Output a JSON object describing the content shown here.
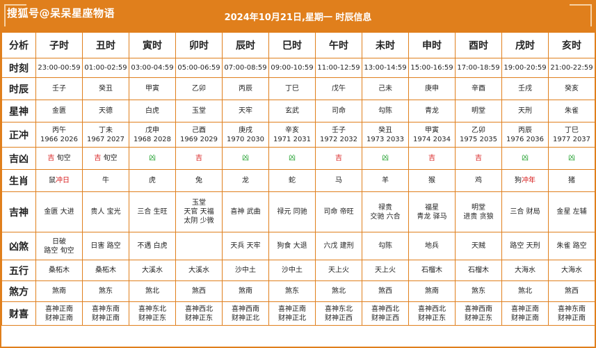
{
  "header": {
    "watermark": "搜狐号@呆呆星座物语",
    "title": "2024年10月21日,星期一 时辰信息"
  },
  "table": {
    "corner_label": "分析",
    "columns": [
      "子时",
      "丑时",
      "寅时",
      "卯时",
      "辰时",
      "巳时",
      "午时",
      "未时",
      "申时",
      "酉时",
      "戌时",
      "亥时"
    ],
    "rows": [
      {
        "label": "时刻",
        "cells": [
          [
            "23:00-00:59"
          ],
          [
            "01:00-02:59"
          ],
          [
            "03:00-04:59"
          ],
          [
            "05:00-06:59"
          ],
          [
            "07:00-08:59"
          ],
          [
            "09:00-10:59"
          ],
          [
            "11:00-12:59"
          ],
          [
            "13:00-14:59"
          ],
          [
            "15:00-16:59"
          ],
          [
            "17:00-18:59"
          ],
          [
            "19:00-20:59"
          ],
          [
            "21:00-22:59"
          ]
        ]
      },
      {
        "label": "时辰",
        "cells": [
          [
            "壬子"
          ],
          [
            "癸丑"
          ],
          [
            "甲寅"
          ],
          [
            "乙卯"
          ],
          [
            "丙辰"
          ],
          [
            "丁巳"
          ],
          [
            "戊午"
          ],
          [
            "己未"
          ],
          [
            "庚申"
          ],
          [
            "辛酉"
          ],
          [
            "壬戌"
          ],
          [
            "癸亥"
          ]
        ]
      },
      {
        "label": "星神",
        "cells": [
          [
            "金匮"
          ],
          [
            "天德"
          ],
          [
            "白虎"
          ],
          [
            "玉堂"
          ],
          [
            "天牢"
          ],
          [
            "玄武"
          ],
          [
            "司命"
          ],
          [
            "勾陈"
          ],
          [
            "青龙"
          ],
          [
            "明堂"
          ],
          [
            "天刑"
          ],
          [
            "朱雀"
          ]
        ]
      },
      {
        "label": "正冲",
        "cells": [
          [
            "丙午",
            "1966 2026"
          ],
          [
            "丁未",
            "1967 2027"
          ],
          [
            "戊申",
            "1968 2028"
          ],
          [
            "己酉",
            "1969 2029"
          ],
          [
            "庚戌",
            "1970 2030"
          ],
          [
            "辛亥",
            "1971 2031"
          ],
          [
            "壬子",
            "1972 2032"
          ],
          [
            "癸丑",
            "1973 2033"
          ],
          [
            "甲寅",
            "1974 2034"
          ],
          [
            "乙卯",
            "1975 2035"
          ],
          [
            "丙辰",
            "1976 2036"
          ],
          [
            "丁巳",
            "1977 2037"
          ]
        ]
      },
      {
        "label": "吉凶",
        "cells": [
          [
            "吉 旬空"
          ],
          [
            "吉 旬空"
          ],
          [
            "凶"
          ],
          [
            "吉"
          ],
          [
            "凶"
          ],
          [
            "凶"
          ],
          [
            "吉"
          ],
          [
            "凶"
          ],
          [
            "吉"
          ],
          [
            "吉"
          ],
          [
            "凶"
          ],
          [
            "凶"
          ]
        ]
      },
      {
        "label": "生肖",
        "cells": [
          [
            "鼠冲日"
          ],
          [
            "牛"
          ],
          [
            "虎"
          ],
          [
            "兔"
          ],
          [
            "龙"
          ],
          [
            "蛇"
          ],
          [
            "马"
          ],
          [
            "羊"
          ],
          [
            "猴"
          ],
          [
            "鸡"
          ],
          [
            "狗冲年"
          ],
          [
            "猪"
          ]
        ]
      },
      {
        "label": "吉神",
        "cells": [
          [
            "金匮 大进"
          ],
          [
            "贵人 宝光"
          ],
          [
            "三合 生旺"
          ],
          [
            "玉堂",
            "天官 天福",
            "太阴 少微"
          ],
          [
            "喜神 武曲"
          ],
          [
            "禄元 同驰"
          ],
          [
            "司命 帝旺"
          ],
          [
            "禄贵",
            "交驰 六合"
          ],
          [
            "福星",
            "青龙 驿马"
          ],
          [
            "明堂",
            "进贵 贪狼"
          ],
          [
            "三合 财局"
          ],
          [
            "金星 左辅"
          ]
        ]
      },
      {
        "label": "凶煞",
        "cells": [
          [
            "日破",
            "路空 旬空"
          ],
          [
            "日害 路空"
          ],
          [
            "不遇 白虎"
          ],
          [
            ""
          ],
          [
            "天兵 天牢"
          ],
          [
            "狗食 大退"
          ],
          [
            "六戊 建刑"
          ],
          [
            "勾陈"
          ],
          [
            "地兵"
          ],
          [
            "天贼"
          ],
          [
            "路空 天刑"
          ],
          [
            "朱雀 路空"
          ]
        ]
      },
      {
        "label": "五行",
        "cells": [
          [
            "桑柘木"
          ],
          [
            "桑柘木"
          ],
          [
            "大溪水"
          ],
          [
            "大溪水"
          ],
          [
            "沙中土"
          ],
          [
            "沙中土"
          ],
          [
            "天上火"
          ],
          [
            "天上火"
          ],
          [
            "石榴木"
          ],
          [
            "石榴木"
          ],
          [
            "大海水"
          ],
          [
            "大海水"
          ]
        ]
      },
      {
        "label": "煞方",
        "cells": [
          [
            "煞南"
          ],
          [
            "煞东"
          ],
          [
            "煞北"
          ],
          [
            "煞西"
          ],
          [
            "煞南"
          ],
          [
            "煞东"
          ],
          [
            "煞北"
          ],
          [
            "煞西"
          ],
          [
            "煞南"
          ],
          [
            "煞东"
          ],
          [
            "煞北"
          ],
          [
            "煞西"
          ]
        ]
      },
      {
        "label": "财喜",
        "cells": [
          [
            "喜神正南",
            "财神正南"
          ],
          [
            "喜神东南",
            "财神正南"
          ],
          [
            "喜神东北",
            "财神正东"
          ],
          [
            "喜神西北",
            "财神正东"
          ],
          [
            "喜神西南",
            "财神正北"
          ],
          [
            "喜神正南",
            "财神正北"
          ],
          [
            "喜神东北",
            "财神正西"
          ],
          [
            "喜神西北",
            "财神正西"
          ],
          [
            "喜神西北",
            "财神正东"
          ],
          [
            "喜神西南",
            "财神正东"
          ],
          [
            "喜神正南",
            "财神正南"
          ],
          [
            "喜神东南",
            "财神正南"
          ]
        ]
      }
    ]
  },
  "colors": {
    "accent": "#e07f1c",
    "good": "#d71c1c",
    "bad": "#1e9f2c"
  }
}
